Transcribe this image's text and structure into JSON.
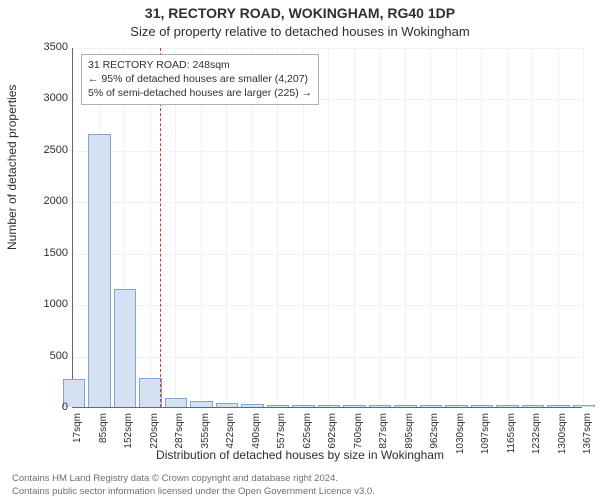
{
  "chart": {
    "type": "histogram",
    "title_line1": "31, RECTORY ROAD, WOKINGHAM, RG40 1DP",
    "title_line2": "Size of property relative to detached houses in Wokingham",
    "ylabel": "Number of detached properties",
    "xlabel": "Distribution of detached houses by size in Wokingham",
    "ylim": [
      0,
      3500
    ],
    "yticks": [
      0,
      500,
      1000,
      1500,
      2000,
      2500,
      3000,
      3500
    ],
    "xticks": [
      "17sqm",
      "85sqm",
      "152sqm",
      "220sqm",
      "287sqm",
      "355sqm",
      "422sqm",
      "490sqm",
      "557sqm",
      "625sqm",
      "692sqm",
      "760sqm",
      "827sqm",
      "895sqm",
      "962sqm",
      "1030sqm",
      "1097sqm",
      "1165sqm",
      "1232sqm",
      "1300sqm",
      "1367sqm"
    ],
    "xrange": [
      17,
      1367
    ],
    "bars": {
      "centers": [
        17,
        85,
        152,
        220,
        287,
        355,
        422,
        490,
        557,
        625,
        692,
        760,
        827,
        895,
        962,
        1030,
        1097,
        1165,
        1232,
        1300,
        1367
      ],
      "values": [
        260,
        2640,
        1140,
        270,
        80,
        45,
        30,
        20,
        12,
        8,
        6,
        5,
        4,
        3,
        3,
        2,
        2,
        2,
        1,
        1,
        1
      ],
      "width_sqm": 55,
      "fill": "#d3e1f3",
      "stroke": "#7ea6d9"
    },
    "marker": {
      "value_sqm": 248,
      "color": "#d93636"
    },
    "annotation": {
      "line1": "31 RECTORY ROAD: 248sqm",
      "line2": "← 95% of detached houses are smaller (4,207)",
      "line3": "5% of semi-detached houses are larger (225) →"
    },
    "grid_color": "#eef1f6",
    "axis_fontsize": 11,
    "title_fontsize": 14,
    "plot_bg": "#ffffff"
  },
  "footer": {
    "line1": "Contains HM Land Registry data © Crown copyright and database right 2024.",
    "line2": "Contains public sector information licensed under the Open Government Licence v3.0."
  }
}
